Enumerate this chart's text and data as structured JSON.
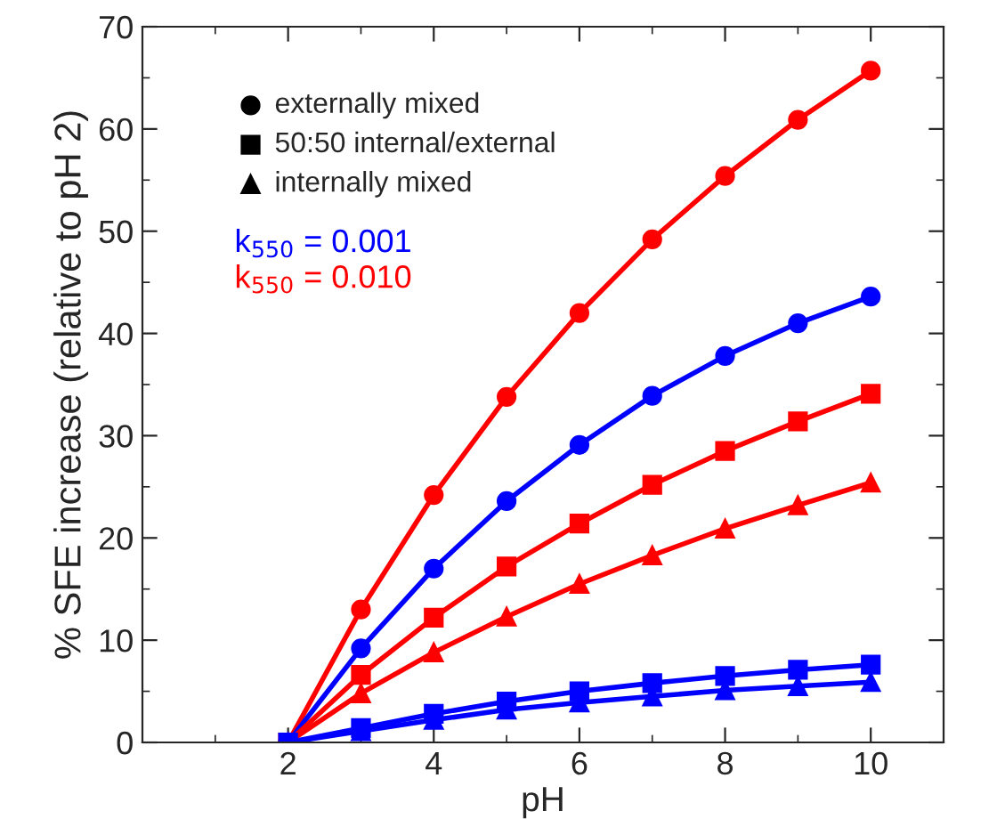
{
  "chart_data": {
    "type": "line",
    "xlabel": "pH",
    "ylabel": "% SFE increase (relative to pH 2)",
    "x": [
      2,
      3,
      4,
      5,
      6,
      7,
      8,
      9,
      10
    ],
    "series": [
      {
        "color": "#ff0000",
        "marker": "circle",
        "values": [
          0,
          13,
          24.2,
          33.8,
          42,
          49.2,
          55.4,
          60.9,
          65.7
        ]
      },
      {
        "color": "#0000ff",
        "marker": "circle",
        "values": [
          0,
          9.2,
          17,
          23.6,
          29.1,
          33.9,
          37.8,
          41,
          43.6
        ]
      },
      {
        "color": "#ff0000",
        "marker": "square",
        "values": [
          0,
          6.6,
          12.2,
          17.2,
          21.4,
          25.2,
          28.5,
          31.4,
          34.1
        ]
      },
      {
        "color": "#ff0000",
        "marker": "triangle",
        "values": [
          0,
          4.8,
          8.8,
          12.3,
          15.5,
          18.3,
          20.9,
          23.2,
          25.4
        ]
      },
      {
        "color": "#0000ff",
        "marker": "square",
        "values": [
          0,
          1.4,
          2.8,
          4,
          5,
          5.8,
          6.5,
          7.1,
          7.6
        ]
      },
      {
        "color": "#0000ff",
        "marker": "triangle",
        "values": [
          0,
          1.1,
          2.2,
          3.2,
          3.9,
          4.5,
          5.1,
          5.5,
          5.9
        ]
      }
    ],
    "annotations": [
      "externally mixed",
      "50:50 internal/external",
      "internally mixed",
      "k$_{550}$ = 0.001",
      "k$_{550}$ = 0.010"
    ],
    "line_style": "solid",
    "xlim": [
      0,
      11
    ],
    "xticks": [
      2,
      4,
      6,
      8,
      10
    ],
    "ylim": [
      0,
      70
    ],
    "yticks": [
      0,
      10,
      20,
      30,
      40,
      50,
      60,
      70
    ],
    "grid": false
  }
}
